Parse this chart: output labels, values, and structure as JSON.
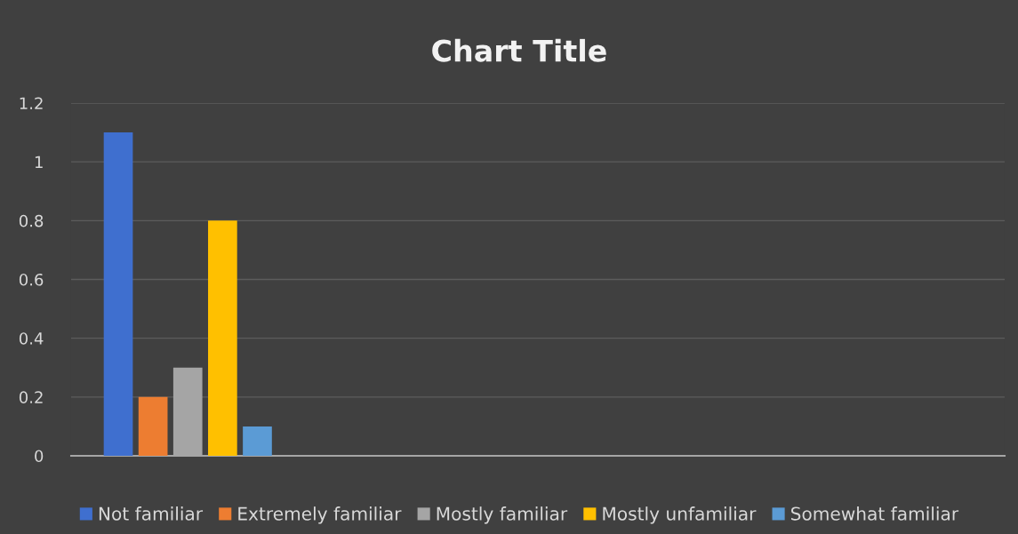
{
  "chart_data": {
    "type": "bar",
    "title": "Chart Title",
    "categories": [
      null,
      null,
      null,
      null
    ],
    "series": [
      {
        "name": "Not familiar",
        "color": "#3f6fcf",
        "values": [
          1.1,
          null,
          null,
          null
        ]
      },
      {
        "name": "Extremely familiar",
        "color": "#ed7d31",
        "values": [
          0.2,
          null,
          null,
          null
        ]
      },
      {
        "name": "Mostly familiar",
        "color": "#a5a5a5",
        "values": [
          0.3,
          null,
          null,
          null
        ]
      },
      {
        "name": "Mostly unfamiliar",
        "color": "#ffc000",
        "values": [
          0.8,
          null,
          null,
          null
        ]
      },
      {
        "name": "Somewhat familiar",
        "color": "#5b9bd5",
        "values": [
          0.1,
          null,
          null,
          null
        ]
      }
    ],
    "ylim": [
      0,
      1.2
    ],
    "yticks": [
      0,
      0.2,
      0.4,
      0.6,
      0.8,
      1,
      1.2
    ],
    "grid": "y",
    "legend": "bottom"
  }
}
